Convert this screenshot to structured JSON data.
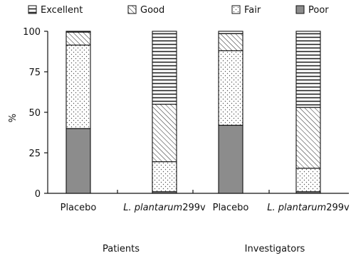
{
  "chart_data": {
    "type": "bar",
    "stacked": true,
    "ylabel": "%",
    "ylim": [
      0,
      100
    ],
    "yticks": [
      0,
      25,
      50,
      75,
      100
    ],
    "grid": false,
    "legend_position": "top",
    "groups": [
      "Patients",
      "Investigators"
    ],
    "categories": [
      "Placebo",
      "L. plantarum299v",
      "Placebo",
      "L. plantarum299v"
    ],
    "category_group": [
      "Patients",
      "Patients",
      "Investigators",
      "Investigators"
    ],
    "category_parts": [
      {
        "italic": "",
        "plain": "Placebo"
      },
      {
        "italic": "L. plantarum",
        "plain": "299v"
      },
      {
        "italic": "",
        "plain": "Placebo"
      },
      {
        "italic": "L. plantarum",
        "plain": "299v"
      }
    ],
    "series": [
      {
        "name": "Poor",
        "values": [
          40,
          1,
          42,
          1
        ],
        "pattern": "solid-gray"
      },
      {
        "name": "Fair",
        "values": [
          51.5,
          18.5,
          46,
          14.5
        ],
        "pattern": "dots"
      },
      {
        "name": "Good",
        "values": [
          8,
          35.5,
          10.5,
          37.5
        ],
        "pattern": "diagonal"
      },
      {
        "name": "Excellent",
        "values": [
          0.5,
          45,
          1.5,
          47
        ],
        "pattern": "horizontal"
      }
    ],
    "legend_order": [
      "Excellent",
      "Good",
      "Fair",
      "Poor"
    ],
    "colors": {
      "poor": "#8c8c8c",
      "outline": "#111111"
    }
  }
}
